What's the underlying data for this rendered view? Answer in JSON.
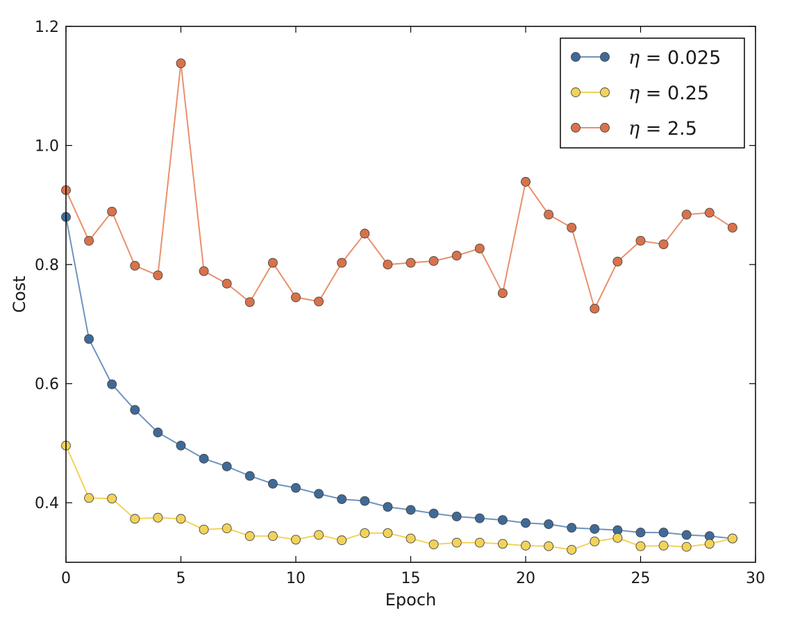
{
  "chart_data": {
    "type": "line",
    "title": "",
    "xlabel": "Epoch",
    "ylabel": "Cost",
    "xlim": [
      0,
      30
    ],
    "ylim": [
      0.3,
      1.2
    ],
    "xticks": [
      0,
      5,
      10,
      15,
      20,
      25,
      30
    ],
    "yticks": [
      0.4,
      0.6,
      0.8,
      1.0,
      1.2
    ],
    "xtick_labels": [
      "0",
      "5",
      "10",
      "15",
      "20",
      "25",
      "30"
    ],
    "ytick_labels": [
      "0.4",
      "0.6",
      "0.8",
      "1.0",
      "1.2"
    ],
    "grid": false,
    "legend_position": "top-right",
    "x": [
      0,
      1,
      2,
      3,
      4,
      5,
      6,
      7,
      8,
      9,
      10,
      11,
      12,
      13,
      14,
      15,
      16,
      17,
      18,
      19,
      20,
      21,
      22,
      23,
      24,
      25,
      26,
      27,
      28,
      29
    ],
    "series": [
      {
        "name": "= 0.025",
        "symbol": "η",
        "color": "#3f6a98",
        "line_color": "#6e94bf",
        "values": [
          0.88,
          0.675,
          0.599,
          0.556,
          0.518,
          0.496,
          0.474,
          0.461,
          0.445,
          0.432,
          0.425,
          0.415,
          0.406,
          0.403,
          0.393,
          0.388,
          0.382,
          0.377,
          0.374,
          0.371,
          0.366,
          0.364,
          0.358,
          0.356,
          0.354,
          0.35,
          0.35,
          0.346,
          0.344,
          0.34
        ]
      },
      {
        "name": "= 0.25",
        "symbol": "η",
        "color": "#f2d35a",
        "line_color": "#f2d35a",
        "values": [
          0.496,
          0.408,
          0.407,
          0.373,
          0.375,
          0.373,
          0.355,
          0.357,
          0.344,
          0.344,
          0.338,
          0.346,
          0.337,
          0.349,
          0.349,
          0.34,
          0.33,
          0.333,
          0.333,
          0.331,
          0.328,
          0.327,
          0.321,
          0.335,
          0.341,
          0.327,
          0.328,
          0.326,
          0.331,
          0.34
        ]
      },
      {
        "name": "= 2.5",
        "symbol": "η",
        "color": "#d9724a",
        "line_color": "#e8906c",
        "values": [
          0.925,
          0.84,
          0.889,
          0.798,
          0.782,
          1.138,
          0.789,
          0.768,
          0.737,
          0.803,
          0.745,
          0.738,
          0.803,
          0.852,
          0.8,
          0.803,
          0.806,
          0.815,
          0.827,
          0.752,
          0.939,
          0.884,
          0.862,
          0.726,
          0.805,
          0.84,
          0.834,
          0.884,
          0.887,
          0.862
        ]
      }
    ]
  }
}
